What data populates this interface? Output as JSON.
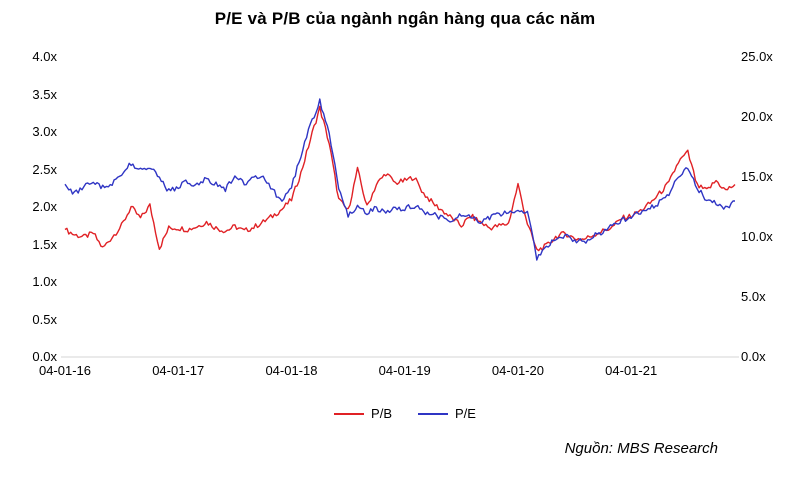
{
  "title": "P/E và P/B của ngành ngân hàng qua các năm",
  "source_note": "Nguồn: MBS Research",
  "colors": {
    "pb_red": "#e02125",
    "pe_blue": "#2f35c4",
    "axis_line": "#d6d6d6",
    "text": "#000000"
  },
  "legend": [
    {
      "label": "P/B",
      "color": "#e02125"
    },
    {
      "label": "P/E",
      "color": "#2f35c4"
    }
  ],
  "chart_data": {
    "type": "line",
    "title": "P/E và P/B của ngành ngân hàng qua các năm",
    "grid": false,
    "legend_position": "bottom",
    "points_cadence": "monthly estimates, Jan 2016 - Dec 2021",
    "x_tick_labels": [
      "04-01-16",
      "04-01-17",
      "04-01-18",
      "04-01-19",
      "04-01-20",
      "04-01-21"
    ],
    "left_axis": {
      "min": 0,
      "max": 4,
      "ticks": [
        "0.0x",
        "0.5x",
        "1.0x",
        "1.5x",
        "2.0x",
        "2.5x",
        "3.0x",
        "3.5x",
        "4.0x"
      ]
    },
    "right_axis": {
      "min": 0,
      "max": 25,
      "ticks": [
        "0.0x",
        "5.0x",
        "10.0x",
        "15.0x",
        "20.0x",
        "25.0x"
      ]
    },
    "series": [
      {
        "name": "P/B",
        "axis": "left",
        "color": "#e02125",
        "monthly_values": [
          1.7,
          1.63,
          1.6,
          1.65,
          1.45,
          1.6,
          1.75,
          2.0,
          1.85,
          2.02,
          1.45,
          1.72,
          1.72,
          1.7,
          1.74,
          1.8,
          1.72,
          1.68,
          1.74,
          1.68,
          1.73,
          1.8,
          1.88,
          1.97,
          2.1,
          2.45,
          2.9,
          3.32,
          2.85,
          2.1,
          1.95,
          2.5,
          2.0,
          2.3,
          2.45,
          2.32,
          2.35,
          2.4,
          2.18,
          2.05,
          1.95,
          1.85,
          1.75,
          1.88,
          1.8,
          1.72,
          1.75,
          1.78,
          2.3,
          1.78,
          1.42,
          1.48,
          1.6,
          1.65,
          1.58,
          1.57,
          1.63,
          1.68,
          1.73,
          1.85,
          1.88,
          1.95,
          2.05,
          2.18,
          2.32,
          2.6,
          2.73,
          2.28,
          2.22,
          2.35,
          2.22,
          2.3
        ]
      },
      {
        "name": "P/E",
        "axis": "right",
        "color": "#2f35c4",
        "monthly_values": [
          14.4,
          13.6,
          14.2,
          14.6,
          14.1,
          14.5,
          15.2,
          16.1,
          15.6,
          15.9,
          14.9,
          13.8,
          14.2,
          14.6,
          14.3,
          14.9,
          14.4,
          14.0,
          15.1,
          14.4,
          14.9,
          15.2,
          13.9,
          13.0,
          14.2,
          16.8,
          19.3,
          21.3,
          18.8,
          14.0,
          11.8,
          12.6,
          12.0,
          12.4,
          12.1,
          12.3,
          12.4,
          12.6,
          12.1,
          11.9,
          11.6,
          11.3,
          11.9,
          11.6,
          11.3,
          11.6,
          11.9,
          12.1,
          12.3,
          12.0,
          8.3,
          9.2,
          9.9,
          10.1,
          9.7,
          9.6,
          10.1,
          10.4,
          10.9,
          11.4,
          11.7,
          12.0,
          12.4,
          12.9,
          13.6,
          15.1,
          15.9,
          14.1,
          13.1,
          12.9,
          12.4,
          13.0
        ]
      }
    ]
  }
}
